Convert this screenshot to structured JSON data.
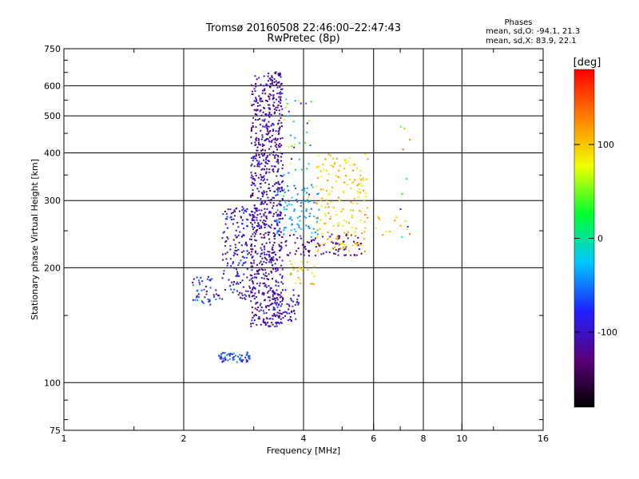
{
  "chart_data": {
    "type": "scatter",
    "title": "Tromsø 20160508 22:46:00–22:47:43",
    "subtitle": "RwPretec (8p)",
    "xlabel": "Frequency [MHz]",
    "ylabel": "Stationary phase Virtual Height [km]",
    "x_scale": "log2",
    "y_scale": "log",
    "xlim": [
      1,
      16
    ],
    "ylim": [
      75,
      750
    ],
    "x_ticks": [
      1,
      2,
      4,
      6,
      8,
      10,
      16
    ],
    "y_ticks": [
      75,
      100,
      200,
      300,
      400,
      500,
      600,
      750
    ],
    "grid": true,
    "stats": {
      "heading": "Phases",
      "line1": "mean, sd,O: -94.1, 21.3",
      "line2": "mean, sd,X:  83.9, 22.1"
    },
    "colorbar": {
      "label": "[deg]",
      "range": [
        -180,
        180
      ],
      "ticks": [
        100,
        0,
        -100
      ],
      "colormap": [
        "#000000",
        "#5a007a",
        "#2020ff",
        "#00c8ff",
        "#00ff30",
        "#f0ff00",
        "#ff8000",
        "#ff0000"
      ]
    },
    "clusters": [
      {
        "fmin": 2.95,
        "fmax": 3.25,
        "hmin": 140,
        "hmax": 640,
        "pmin": -140,
        "pmax": -80,
        "n": 420
      },
      {
        "fmin": 3.25,
        "fmax": 3.55,
        "hmin": 140,
        "hmax": 660,
        "pmin": -140,
        "pmax": -80,
        "n": 420
      },
      {
        "fmin": 2.5,
        "fmax": 3.0,
        "hmin": 165,
        "hmax": 290,
        "pmin": -130,
        "pmax": -60,
        "n": 180
      },
      {
        "fmin": 2.1,
        "fmax": 2.5,
        "hmin": 160,
        "hmax": 190,
        "pmin": -120,
        "pmax": -40,
        "n": 50
      },
      {
        "fmin": 2.45,
        "fmax": 2.95,
        "hmin": 113,
        "hmax": 120,
        "pmin": -120,
        "pmax": -30,
        "n": 60
      },
      {
        "fmin": 3.3,
        "fmax": 3.9,
        "hmin": 145,
        "hmax": 175,
        "pmin": -130,
        "pmax": -70,
        "n": 60
      },
      {
        "fmin": 3.4,
        "fmax": 4.4,
        "hmin": 240,
        "hmax": 330,
        "pmin": -60,
        "pmax": -20,
        "n": 90
      },
      {
        "fmin": 3.6,
        "fmax": 5.6,
        "hmin": 215,
        "hmax": 245,
        "pmin": -140,
        "pmax": -100,
        "n": 90
      },
      {
        "fmin": 4.3,
        "fmax": 5.8,
        "hmin": 220,
        "hmax": 400,
        "pmin": 70,
        "pmax": 130,
        "n": 180
      },
      {
        "fmin": 3.7,
        "fmax": 4.3,
        "hmin": 180,
        "hmax": 210,
        "pmin": 80,
        "pmax": 120,
        "n": 25
      },
      {
        "fmin": 6.0,
        "fmax": 7.4,
        "hmin": 240,
        "hmax": 280,
        "pmin": 60,
        "pmax": 130,
        "n": 12
      },
      {
        "fmin": 7.0,
        "fmax": 7.4,
        "hmin": 200,
        "hmax": 480,
        "pmin": -100,
        "pmax": 150,
        "n": 10
      },
      {
        "fmin": 3.55,
        "fmax": 4.2,
        "hmin": 300,
        "hmax": 560,
        "pmin": -120,
        "pmax": 90,
        "n": 40
      }
    ]
  }
}
